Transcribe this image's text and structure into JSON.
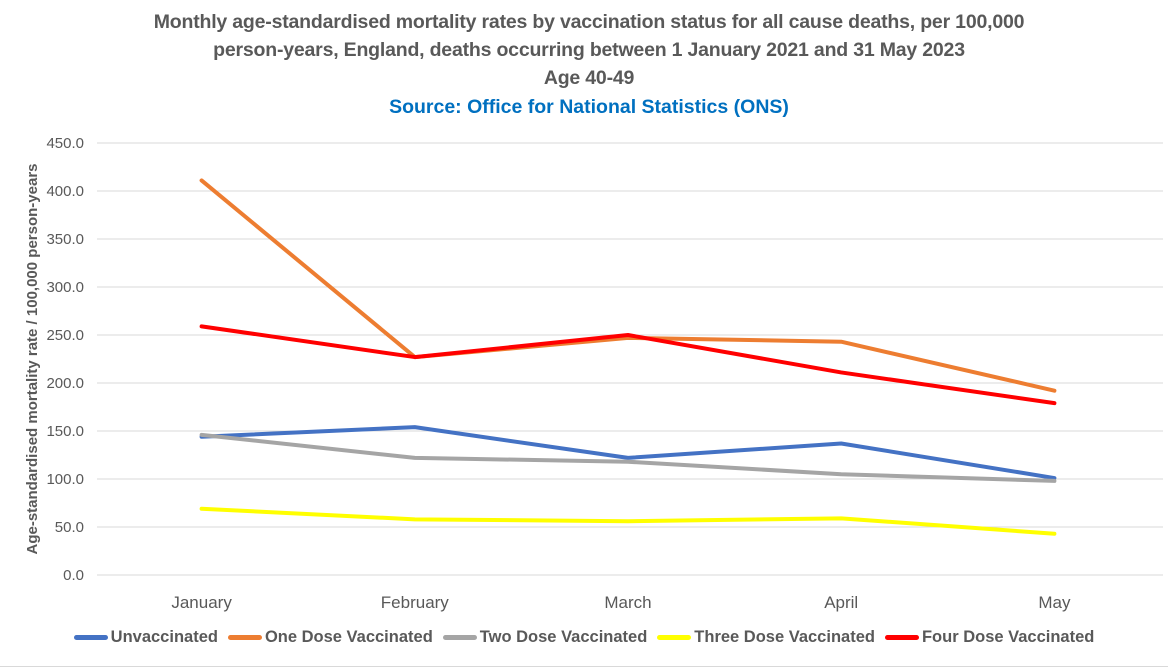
{
  "chart_data": {
    "type": "line",
    "title_lines": [
      "Monthly age-standardised mortality rates by vaccination status for all cause deaths, per 100,000",
      "person-years, England, deaths occurring between 1 January 2021 and 31 May 2023",
      "Age 40-49"
    ],
    "subtitle": "Source: Office for National Statistics (ONS)",
    "xlabel": "",
    "ylabel": "Age-standardised mortality rate / 100,000 person-years",
    "categories": [
      "January",
      "February",
      "March",
      "April",
      "May"
    ],
    "ylim": [
      0,
      450
    ],
    "yticks": [
      0,
      50,
      100,
      150,
      200,
      250,
      300,
      350,
      400,
      450
    ],
    "ytick_labels": [
      "0.0",
      "50.0",
      "100.0",
      "150.0",
      "200.0",
      "250.0",
      "300.0",
      "350.0",
      "400.0",
      "450.0"
    ],
    "grid": true,
    "legend_position": "bottom",
    "series": [
      {
        "name": "Unvaccinated",
        "color": "#4472C4",
        "values": [
          144,
          154,
          122,
          137,
          101
        ]
      },
      {
        "name": "One Dose Vaccinated",
        "color": "#ED7D31",
        "values": [
          411,
          227,
          247,
          243,
          192
        ]
      },
      {
        "name": "Two Dose Vaccinated",
        "color": "#A5A5A5",
        "values": [
          146,
          122,
          118,
          105,
          98
        ]
      },
      {
        "name": "Three Dose Vaccinated",
        "color": "#FFFF00",
        "values": [
          69,
          58,
          56,
          59,
          43
        ]
      },
      {
        "name": "Four Dose Vaccinated",
        "color": "#FF0000",
        "values": [
          259,
          227,
          250,
          211,
          179
        ]
      }
    ]
  }
}
